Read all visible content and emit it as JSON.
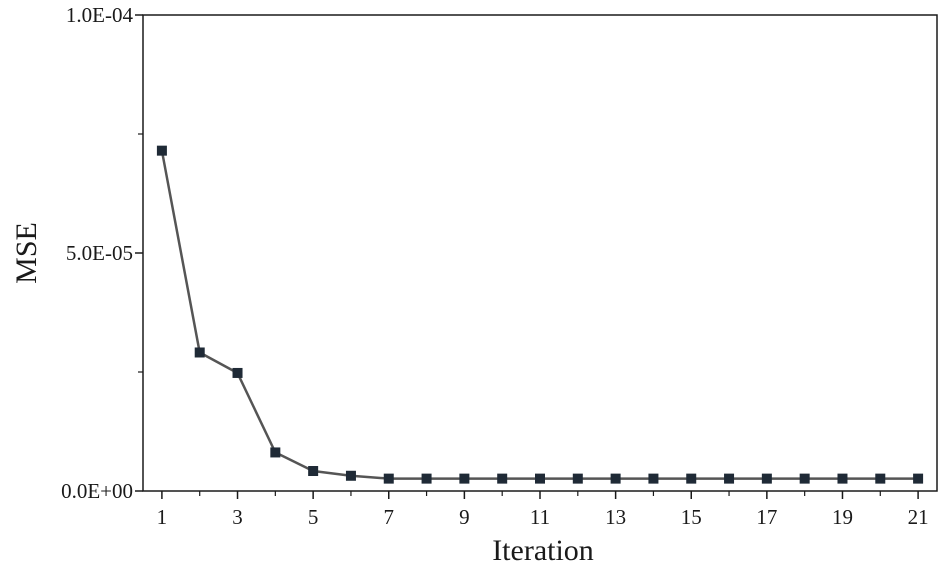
{
  "chart_data": {
    "type": "line",
    "xlabel": "Iteration",
    "ylabel": "MSE",
    "xlim": [
      0.5,
      21.5
    ],
    "ylim": [
      0,
      0.0001
    ],
    "x_ticks": [
      1,
      3,
      5,
      7,
      9,
      11,
      13,
      15,
      17,
      19,
      21
    ],
    "x_tick_labels": [
      "1",
      "3",
      "5",
      "7",
      "9",
      "11",
      "13",
      "15",
      "17",
      "19",
      "21"
    ],
    "y_ticks": [
      0,
      5e-05,
      0.0001
    ],
    "y_tick_labels": [
      "0.0E+00",
      "5.0E-05",
      "1.0E-04"
    ],
    "y_minor_ticks": [
      2.5e-05,
      7.5e-05
    ],
    "grid": false,
    "marker": "square",
    "colors": {
      "line": "#555555",
      "marker": "#1f2a36",
      "axis": "#1a1a1a"
    },
    "series": [
      {
        "x": [
          1,
          2,
          3,
          4,
          5,
          6,
          7,
          8,
          9,
          10,
          11,
          12,
          13,
          14,
          15,
          16,
          17,
          18,
          19,
          20,
          21
        ],
        "values": [
          7.15e-05,
          2.91e-05,
          2.48e-05,
          8.1e-06,
          4.2e-06,
          3.2e-06,
          2.6e-06,
          2.6e-06,
          2.6e-06,
          2.6e-06,
          2.6e-06,
          2.6e-06,
          2.6e-06,
          2.6e-06,
          2.6e-06,
          2.6e-06,
          2.6e-06,
          2.6e-06,
          2.6e-06,
          2.6e-06,
          2.6e-06
        ]
      }
    ]
  }
}
